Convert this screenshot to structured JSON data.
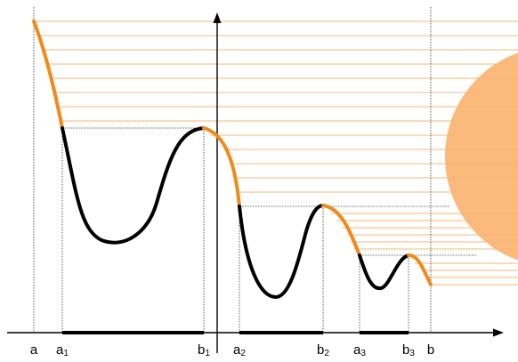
{
  "diagram": {
    "colors": {
      "axis": "#000000",
      "curve_dark": "#000000",
      "curve_highlight": "#f08a1a",
      "horizontal_lines": "#f6b87a",
      "sun_disc": "#fbb97c",
      "guide_lines": "#333333",
      "interval_bars": "#000000"
    },
    "x_axis_labels": [
      {
        "id": "a",
        "base": "a",
        "sub": ""
      },
      {
        "id": "a1",
        "base": "a",
        "sub": "1"
      },
      {
        "id": "b1",
        "base": "b",
        "sub": "1"
      },
      {
        "id": "a2",
        "base": "a",
        "sub": "2"
      },
      {
        "id": "b2",
        "base": "b",
        "sub": "2"
      },
      {
        "id": "a3",
        "base": "a",
        "sub": "3"
      },
      {
        "id": "b3",
        "base": "b",
        "sub": "3"
      },
      {
        "id": "b",
        "base": "b",
        "sub": ""
      }
    ]
  }
}
